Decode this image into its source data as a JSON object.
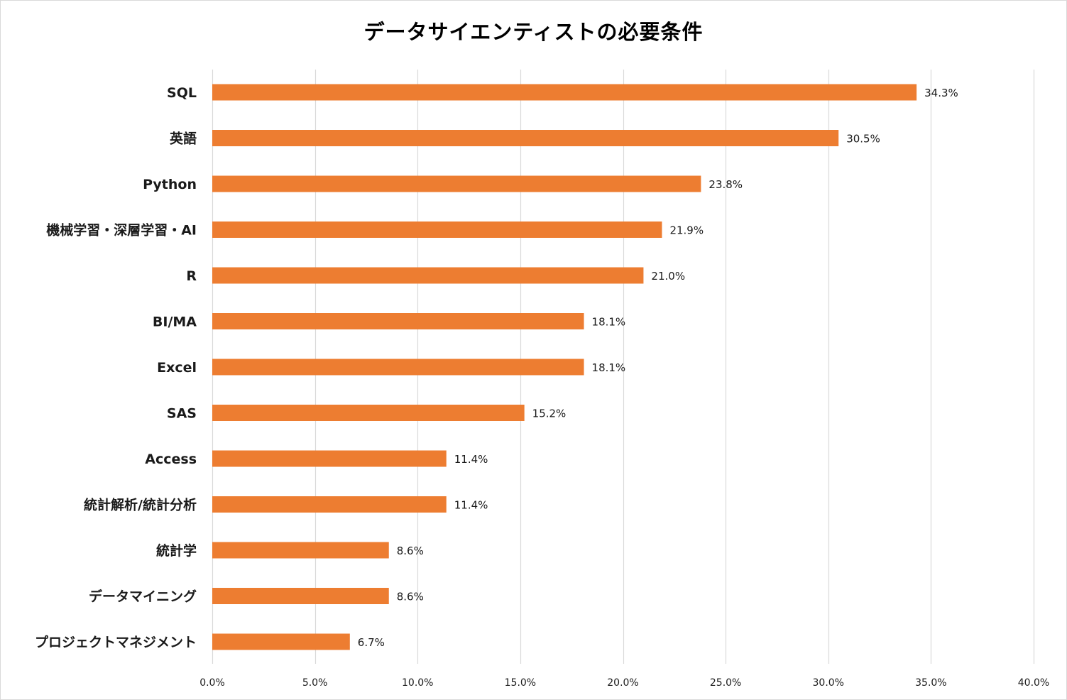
{
  "chart_data": {
    "type": "bar",
    "orientation": "horizontal",
    "title": "データサイエンティストの必要条件",
    "categories": [
      "SQL",
      "英語",
      "Python",
      "機械学習・深層学習・AI",
      "R",
      "BI/MA",
      "Excel",
      "SAS",
      "Access",
      "統計解析/統計分析",
      "統計学",
      "データマイニング",
      "プロジェクトマネジメント"
    ],
    "values": [
      34.3,
      30.5,
      23.8,
      21.9,
      21.0,
      18.1,
      18.1,
      15.2,
      11.4,
      11.4,
      8.6,
      8.6,
      6.7
    ],
    "value_labels": [
      "34.3%",
      "30.5%",
      "23.8%",
      "21.9%",
      "21.0%",
      "18.1%",
      "18.1%",
      "15.2%",
      "11.4%",
      "11.4%",
      "8.6%",
      "8.6%",
      "6.7%"
    ],
    "xlim": [
      0,
      40
    ],
    "x_ticks": [
      0,
      5,
      10,
      15,
      20,
      25,
      30,
      35,
      40
    ],
    "x_tick_labels": [
      "0.0%",
      "5.0%",
      "10.0%",
      "15.0%",
      "20.0%",
      "25.0%",
      "30.0%",
      "35.0%",
      "40.0%"
    ],
    "grid": "vertical",
    "legend": "none",
    "bar_color": "#ED7D31",
    "grid_color": "#d9d9d9"
  }
}
